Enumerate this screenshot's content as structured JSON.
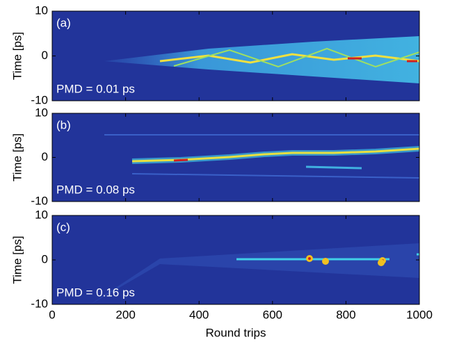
{
  "chart_data": [
    {
      "type": "heatmap",
      "panel_label": "(a)",
      "annotation": "PMD = 0.01 ps",
      "ylabel": "Time [ps]",
      "xlim": [
        0,
        1000
      ],
      "xticks": [
        0,
        200,
        400,
        600,
        800,
        1000
      ],
      "ylim": [
        -10,
        10
      ],
      "yticks": [
        -10,
        0,
        10
      ]
    },
    {
      "type": "heatmap",
      "panel_label": "(b)",
      "annotation": "PMD = 0.08 ps",
      "ylabel": "Time [ps]",
      "xlim": [
        0,
        1000
      ],
      "xticks": [
        0,
        200,
        400,
        600,
        800,
        1000
      ],
      "ylim": [
        -10,
        10
      ],
      "yticks": [
        -10,
        0,
        10
      ]
    },
    {
      "type": "heatmap",
      "panel_label": "(c)",
      "annotation": "PMD = 0.16 ps",
      "ylabel": "Time [ps]",
      "xlabel": "Round trips",
      "xlim": [
        0,
        1000
      ],
      "xticks": [
        0,
        200,
        400,
        600,
        800,
        1000
      ],
      "ylim": [
        -10,
        10
      ],
      "yticks": [
        -10,
        0,
        10
      ]
    }
  ]
}
